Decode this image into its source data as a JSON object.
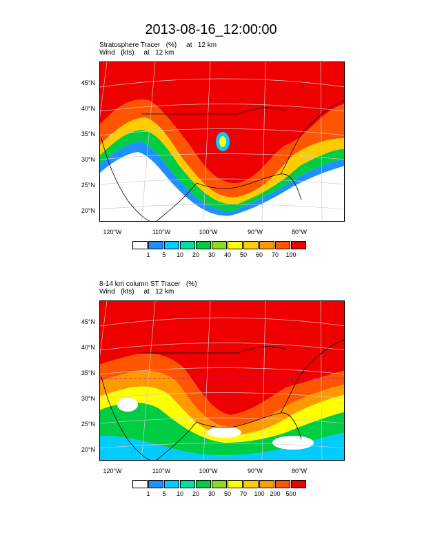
{
  "title": "2013-08-16_12:00:00",
  "panels": [
    {
      "line1": "Stratosphere Tracer   (%)     at   12 km",
      "line2": "Wind   (kts)     at   12 km",
      "lat_labels": [
        "45°N",
        "40°N",
        "35°N",
        "30°N",
        "25°N",
        "20°N"
      ],
      "lon_labels": [
        "120°W",
        "110°W",
        "100°W",
        "90°W",
        "80°W"
      ],
      "colorbar_labels": [
        "1",
        "5",
        "10",
        "20",
        "30",
        "40",
        "50",
        "60",
        "70",
        "100"
      ],
      "colors": [
        "#ffffff",
        "#1e90ff",
        "#00ccff",
        "#00e0a0",
        "#00cc44",
        "#88dd22",
        "#ffff00",
        "#ffcc00",
        "#ff9900",
        "#ff5500",
        "#ee0000"
      ]
    },
    {
      "line1": "8-14 km column ST Tracer   (%)",
      "line2": "Wind   (kts)     at   12 km",
      "lat_labels": [
        "45°N",
        "40°N",
        "35°N",
        "30°N",
        "25°N",
        "20°N"
      ],
      "lon_labels": [
        "120°W",
        "110°W",
        "100°W",
        "90°W",
        "80°W"
      ],
      "colorbar_labels": [
        "1",
        "5",
        "10",
        "20",
        "30",
        "50",
        "70",
        "100",
        "200",
        "500"
      ],
      "colors": [
        "#ffffff",
        "#1e90ff",
        "#00ccff",
        "#00e0a0",
        "#00cc44",
        "#88dd22",
        "#ffff00",
        "#ffcc00",
        "#ff9900",
        "#ff5500",
        "#ee0000"
      ]
    }
  ]
}
